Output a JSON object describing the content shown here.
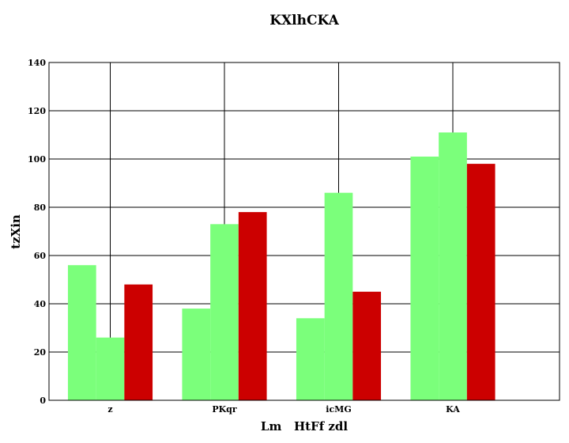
{
  "chart_data": {
    "type": "bar",
    "title": "KXlhCKA",
    "xlabel": "Lm   HtFf zdl",
    "ylabel": "tzXin",
    "categories": [
      "z",
      "PKqr",
      "icMG",
      "KA"
    ],
    "series": [
      {
        "values": [
          56,
          38,
          34,
          101
        ],
        "color": "#7bff7b"
      },
      {
        "values": [
          26,
          73,
          86,
          111
        ],
        "color": "#7bff7b"
      },
      {
        "values": [
          48,
          78,
          45,
          98
        ],
        "color": "#cc0000"
      }
    ],
    "ylim": [
      0,
      140
    ],
    "yticks": [
      0,
      20,
      40,
      60,
      80,
      100,
      120,
      140
    ],
    "grid": true,
    "legend": "none"
  }
}
